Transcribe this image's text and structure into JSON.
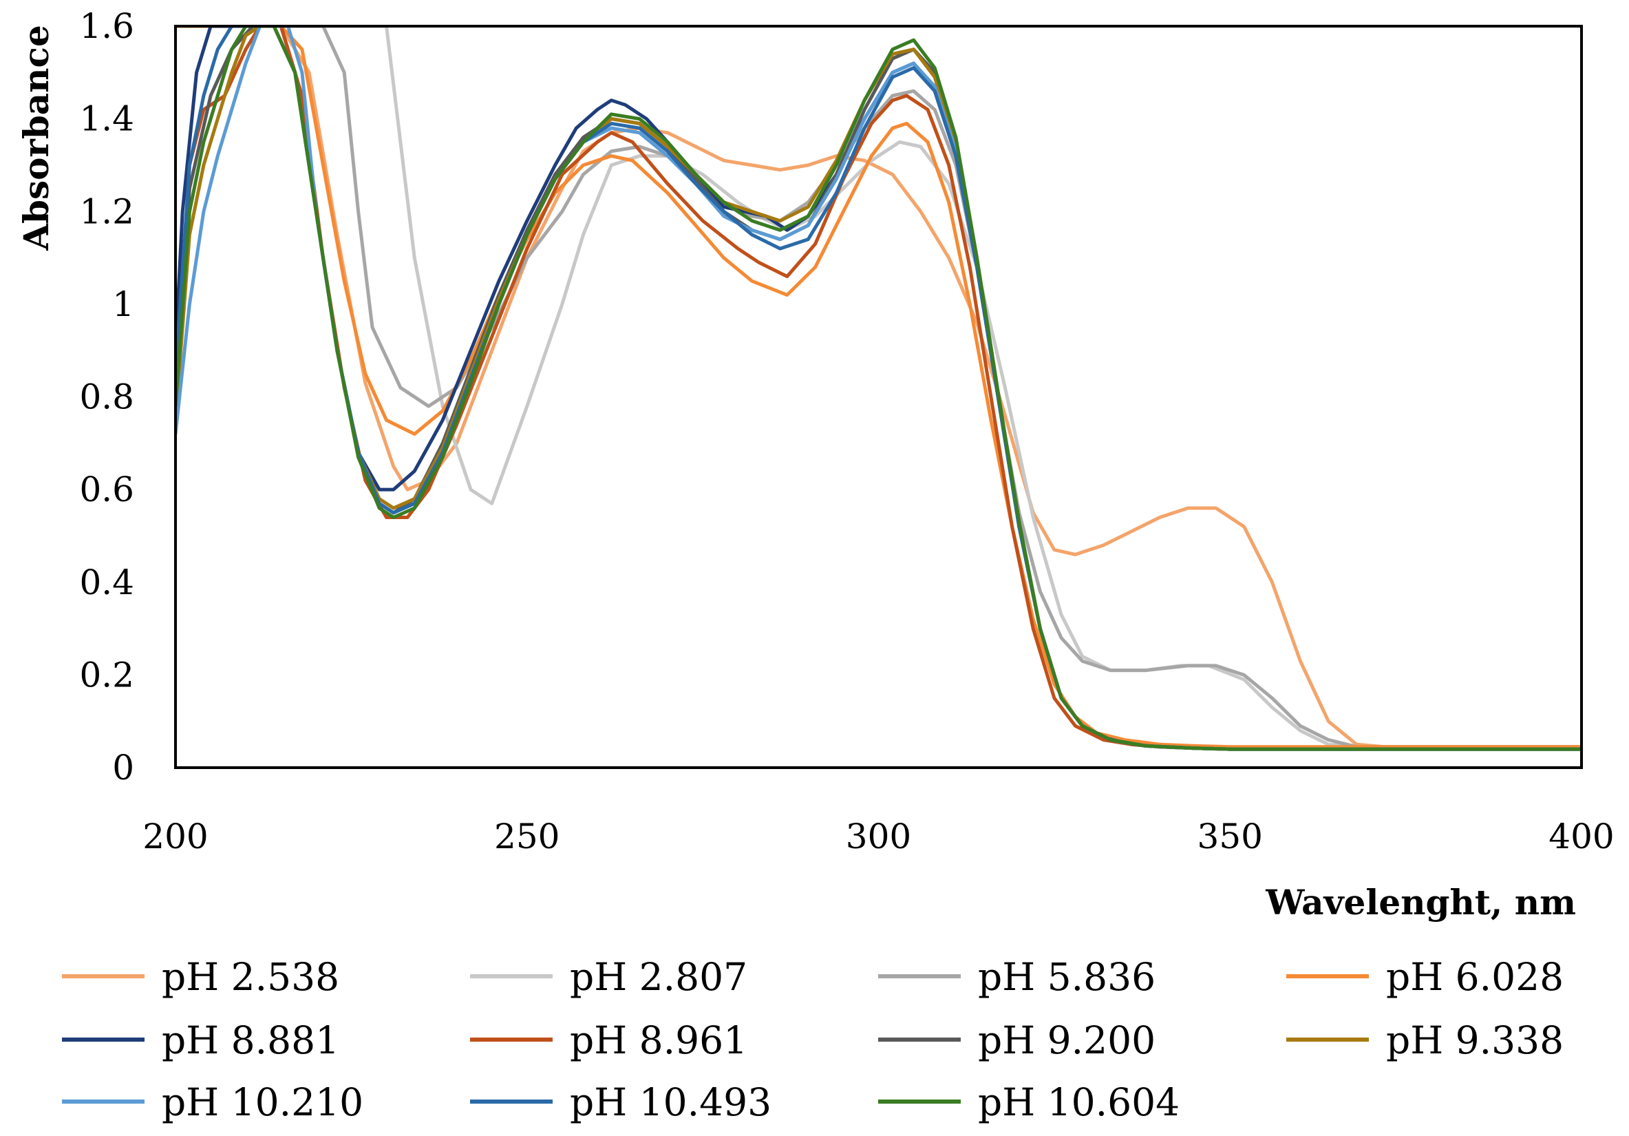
{
  "chart_data": {
    "type": "line",
    "title": "",
    "xlabel": "Wavelenght, nm",
    "ylabel": "Absorbance",
    "xlim": [
      200,
      400
    ],
    "ylim": [
      0,
      1.6
    ],
    "x_ticks": [
      "200",
      "250",
      "300",
      "350",
      "400"
    ],
    "y_ticks": [
      "0",
      "0.2",
      "0.4",
      "0.6",
      "0.8",
      "1",
      "1.2",
      "1.4",
      "1.6"
    ],
    "grid": false,
    "legend_position": "bottom",
    "series": [
      {
        "name": "pH 2.538",
        "color": "#F4A46A",
        "x": [
          200,
          201,
          205,
          210,
          212,
          215,
          219,
          223,
          227,
          231,
          233,
          236,
          240,
          245,
          250,
          255,
          258,
          262,
          266,
          270,
          274,
          278,
          282,
          286,
          290,
          294,
          298,
          302,
          306,
          310,
          314,
          318,
          322,
          325,
          328,
          332,
          336,
          340,
          344,
          348,
          352,
          356,
          360,
          364,
          368,
          372,
          380,
          390,
          400
        ],
        "y": [
          1.6,
          1.6,
          1.6,
          1.6,
          1.6,
          1.6,
          1.5,
          1.15,
          0.83,
          0.65,
          0.6,
          0.62,
          0.7,
          0.9,
          1.1,
          1.25,
          1.33,
          1.37,
          1.38,
          1.37,
          1.34,
          1.31,
          1.3,
          1.29,
          1.3,
          1.32,
          1.31,
          1.28,
          1.2,
          1.1,
          0.96,
          0.76,
          0.55,
          0.47,
          0.46,
          0.48,
          0.51,
          0.54,
          0.56,
          0.56,
          0.52,
          0.4,
          0.23,
          0.1,
          0.05,
          0.045,
          0.045,
          0.045,
          0.045
        ]
      },
      {
        "name": "pH 2.807",
        "color": "#C8C8C8",
        "x": [
          200,
          201,
          205,
          210,
          215,
          220,
          225,
          230,
          234,
          238,
          242,
          245,
          250,
          255,
          258,
          262,
          266,
          270,
          275,
          280,
          283,
          287,
          291,
          295,
          299,
          303,
          306,
          310,
          314,
          318,
          322,
          326,
          329,
          333,
          338,
          343,
          347,
          352,
          356,
          360,
          364,
          368,
          372,
          380,
          390,
          400
        ],
        "y": [
          1.6,
          1.6,
          1.6,
          1.6,
          1.6,
          1.6,
          1.6,
          1.6,
          1.1,
          0.78,
          0.6,
          0.57,
          0.78,
          1.0,
          1.15,
          1.3,
          1.32,
          1.32,
          1.28,
          1.22,
          1.19,
          1.16,
          1.19,
          1.25,
          1.31,
          1.35,
          1.34,
          1.26,
          1.08,
          0.82,
          0.54,
          0.33,
          0.24,
          0.21,
          0.21,
          0.22,
          0.22,
          0.19,
          0.13,
          0.08,
          0.05,
          0.045,
          0.045,
          0.045,
          0.045,
          0.045
        ]
      },
      {
        "name": "pH 5.836",
        "color": "#A6A6A6",
        "x": [
          200,
          201,
          204,
          208,
          212,
          215,
          218,
          221,
          224,
          226,
          228,
          232,
          236,
          240,
          245,
          250,
          255,
          258,
          262,
          266,
          270,
          274,
          278,
          282,
          286,
          290,
          294,
          298,
          302,
          305,
          308,
          311,
          314,
          317,
          320,
          323,
          326,
          329,
          333,
          338,
          344,
          348,
          352,
          356,
          360,
          364,
          368,
          372,
          380,
          390,
          400
        ],
        "y": [
          1.6,
          1.6,
          1.6,
          1.6,
          1.6,
          1.6,
          1.6,
          1.6,
          1.5,
          1.2,
          0.95,
          0.82,
          0.78,
          0.82,
          0.95,
          1.1,
          1.2,
          1.28,
          1.33,
          1.34,
          1.32,
          1.28,
          1.22,
          1.19,
          1.18,
          1.22,
          1.3,
          1.38,
          1.45,
          1.46,
          1.42,
          1.3,
          1.08,
          0.8,
          0.55,
          0.38,
          0.28,
          0.23,
          0.21,
          0.21,
          0.22,
          0.22,
          0.2,
          0.15,
          0.09,
          0.06,
          0.045,
          0.045,
          0.045,
          0.045,
          0.045
        ]
      },
      {
        "name": "pH 6.028",
        "color": "#F58A35",
        "x": [
          200,
          201,
          205,
          209,
          212,
          215,
          218,
          221,
          224,
          227,
          230,
          234,
          238,
          242,
          246,
          250,
          254,
          258,
          262,
          265,
          270,
          274,
          278,
          282,
          287,
          291,
          295,
          299,
          302,
          304,
          307,
          310,
          313,
          316,
          319,
          322,
          325,
          328,
          331,
          335,
          340,
          345,
          350,
          360,
          370,
          380,
          390,
          400
        ],
        "y": [
          1.6,
          1.6,
          1.6,
          1.6,
          1.6,
          1.6,
          1.55,
          1.3,
          1.05,
          0.85,
          0.75,
          0.72,
          0.77,
          0.88,
          1.02,
          1.14,
          1.24,
          1.3,
          1.32,
          1.31,
          1.24,
          1.17,
          1.1,
          1.05,
          1.02,
          1.08,
          1.2,
          1.32,
          1.38,
          1.39,
          1.35,
          1.22,
          1.0,
          0.75,
          0.52,
          0.32,
          0.18,
          0.11,
          0.075,
          0.06,
          0.05,
          0.047,
          0.045,
          0.045,
          0.045,
          0.045,
          0.045,
          0.045
        ]
      },
      {
        "name": "pH 8.881",
        "color": "#1F3D7A",
        "x": [
          200,
          201,
          203,
          205,
          207,
          209,
          211,
          213,
          215,
          217,
          220,
          223,
          226,
          229,
          231,
          234,
          238,
          242,
          246,
          250,
          254,
          257,
          260,
          262,
          264,
          267,
          270,
          274,
          278,
          281,
          284,
          287,
          290,
          294,
          298,
          302,
          305,
          308,
          311,
          314,
          317,
          320,
          323,
          326,
          329,
          332,
          336,
          340,
          345,
          350,
          360,
          370,
          380,
          390,
          400
        ],
        "y": [
          0.9,
          1.2,
          1.5,
          1.6,
          1.6,
          1.6,
          1.6,
          1.6,
          1.6,
          1.5,
          1.2,
          0.9,
          0.68,
          0.6,
          0.6,
          0.64,
          0.75,
          0.9,
          1.05,
          1.18,
          1.3,
          1.38,
          1.42,
          1.44,
          1.43,
          1.4,
          1.35,
          1.28,
          1.21,
          1.2,
          1.19,
          1.16,
          1.19,
          1.28,
          1.4,
          1.5,
          1.52,
          1.46,
          1.32,
          1.08,
          0.8,
          0.52,
          0.3,
          0.15,
          0.09,
          0.065,
          0.05,
          0.045,
          0.042,
          0.04,
          0.04,
          0.04,
          0.04,
          0.04,
          0.04
        ]
      },
      {
        "name": "pH 8.961",
        "color": "#C0501A",
        "x": [
          200,
          202,
          204,
          207,
          210,
          212,
          215,
          218,
          221,
          224,
          227,
          230,
          233,
          236,
          240,
          245,
          250,
          255,
          260,
          262,
          265,
          270,
          275,
          280,
          283,
          287,
          291,
          295,
          299,
          302,
          304,
          307,
          310,
          313,
          316,
          319,
          322,
          325,
          328,
          332,
          336,
          340,
          345,
          350,
          360,
          370,
          380,
          390,
          400
        ],
        "y": [
          0.8,
          1.3,
          1.42,
          1.45,
          1.55,
          1.6,
          1.6,
          1.45,
          1.1,
          0.82,
          0.62,
          0.54,
          0.54,
          0.6,
          0.74,
          0.93,
          1.12,
          1.28,
          1.35,
          1.37,
          1.35,
          1.26,
          1.18,
          1.12,
          1.09,
          1.06,
          1.13,
          1.27,
          1.39,
          1.44,
          1.45,
          1.42,
          1.3,
          1.08,
          0.8,
          0.52,
          0.3,
          0.15,
          0.09,
          0.06,
          0.05,
          0.045,
          0.042,
          0.04,
          0.04,
          0.04,
          0.04,
          0.04,
          0.04
        ]
      },
      {
        "name": "pH 9.200",
        "color": "#595959",
        "x": [
          200,
          202,
          205,
          208,
          211,
          214,
          217,
          220,
          223,
          226,
          229,
          231,
          234,
          238,
          242,
          246,
          250,
          254,
          258,
          262,
          266,
          270,
          274,
          278,
          282,
          286,
          290,
          294,
          298,
          302,
          305,
          308,
          311,
          314,
          317,
          320,
          323,
          326,
          329,
          333,
          338,
          345,
          350,
          360,
          370,
          380,
          390,
          400
        ],
        "y": [
          0.8,
          1.25,
          1.45,
          1.55,
          1.6,
          1.6,
          1.5,
          1.2,
          0.9,
          0.68,
          0.57,
          0.55,
          0.58,
          0.7,
          0.86,
          1.02,
          1.16,
          1.28,
          1.36,
          1.4,
          1.39,
          1.34,
          1.27,
          1.2,
          1.16,
          1.14,
          1.17,
          1.28,
          1.42,
          1.53,
          1.55,
          1.5,
          1.35,
          1.1,
          0.81,
          0.53,
          0.3,
          0.15,
          0.09,
          0.06,
          0.047,
          0.042,
          0.04,
          0.04,
          0.04,
          0.04,
          0.04,
          0.04
        ]
      },
      {
        "name": "pH 9.338",
        "color": "#A67A10",
        "x": [
          200,
          202,
          204,
          206,
          208,
          210,
          212,
          214,
          217,
          220,
          223,
          226,
          229,
          231,
          234,
          238,
          242,
          246,
          250,
          254,
          258,
          262,
          266,
          270,
          274,
          278,
          282,
          286,
          290,
          294,
          298,
          302,
          305,
          308,
          311,
          314,
          317,
          320,
          323,
          326,
          329,
          333,
          338,
          345,
          350,
          360,
          370,
          380,
          390,
          400
        ],
        "y": [
          0.75,
          1.15,
          1.3,
          1.4,
          1.5,
          1.58,
          1.6,
          1.6,
          1.5,
          1.2,
          0.9,
          0.68,
          0.58,
          0.56,
          0.58,
          0.69,
          0.85,
          1.01,
          1.15,
          1.27,
          1.35,
          1.4,
          1.39,
          1.34,
          1.28,
          1.22,
          1.2,
          1.18,
          1.21,
          1.31,
          1.44,
          1.54,
          1.55,
          1.49,
          1.34,
          1.09,
          0.8,
          0.52,
          0.3,
          0.15,
          0.09,
          0.06,
          0.047,
          0.042,
          0.04,
          0.04,
          0.04,
          0.04,
          0.04,
          0.04
        ]
      },
      {
        "name": "pH 10.210",
        "color": "#5B9BD5",
        "x": [
          200,
          202,
          204,
          206,
          208,
          210,
          212,
          214,
          216,
          218,
          220,
          223,
          226,
          229,
          231,
          234,
          238,
          242,
          246,
          250,
          254,
          258,
          262,
          266,
          270,
          274,
          278,
          282,
          286,
          290,
          294,
          298,
          302,
          305,
          308,
          311,
          314,
          317,
          320,
          323,
          326,
          329,
          333,
          338,
          345,
          350,
          360,
          370,
          380,
          390,
          400
        ],
        "y": [
          0.72,
          1.0,
          1.2,
          1.32,
          1.42,
          1.52,
          1.6,
          1.6,
          1.6,
          1.5,
          1.2,
          0.9,
          0.68,
          0.57,
          0.55,
          0.57,
          0.68,
          0.84,
          1.0,
          1.15,
          1.27,
          1.35,
          1.38,
          1.37,
          1.32,
          1.26,
          1.19,
          1.16,
          1.14,
          1.17,
          1.27,
          1.4,
          1.5,
          1.52,
          1.47,
          1.33,
          1.08,
          0.8,
          0.52,
          0.3,
          0.15,
          0.09,
          0.06,
          0.047,
          0.042,
          0.04,
          0.04,
          0.04,
          0.04,
          0.04,
          0.04
        ]
      },
      {
        "name": "pH 10.493",
        "color": "#2A6AA8",
        "x": [
          200,
          202,
          204,
          206,
          208,
          210,
          212,
          214,
          217,
          220,
          223,
          226,
          229,
          231,
          234,
          238,
          242,
          246,
          250,
          254,
          258,
          262,
          266,
          270,
          274,
          278,
          282,
          286,
          290,
          294,
          298,
          302,
          305,
          308,
          311,
          314,
          317,
          320,
          323,
          326,
          329,
          333,
          338,
          345,
          350,
          360,
          370,
          380,
          390,
          400
        ],
        "y": [
          0.85,
          1.3,
          1.45,
          1.55,
          1.6,
          1.6,
          1.6,
          1.6,
          1.5,
          1.2,
          0.9,
          0.68,
          0.57,
          0.55,
          0.57,
          0.68,
          0.84,
          1.0,
          1.15,
          1.27,
          1.35,
          1.39,
          1.38,
          1.33,
          1.26,
          1.2,
          1.15,
          1.12,
          1.14,
          1.24,
          1.38,
          1.49,
          1.51,
          1.46,
          1.32,
          1.08,
          0.8,
          0.52,
          0.3,
          0.15,
          0.09,
          0.06,
          0.047,
          0.042,
          0.04,
          0.04,
          0.04,
          0.04,
          0.04,
          0.04
        ]
      },
      {
        "name": "pH 10.604",
        "color": "#3A7D22",
        "x": [
          200,
          202,
          204,
          206,
          208,
          210,
          212,
          214,
          217,
          220,
          223,
          226,
          229,
          231,
          234,
          238,
          242,
          246,
          250,
          254,
          258,
          262,
          266,
          270,
          274,
          278,
          282,
          286,
          290,
          294,
          298,
          302,
          305,
          308,
          311,
          314,
          317,
          320,
          323,
          326,
          329,
          333,
          338,
          345,
          350,
          360,
          370,
          380,
          390,
          400
        ],
        "y": [
          0.78,
          1.2,
          1.35,
          1.45,
          1.55,
          1.6,
          1.6,
          1.6,
          1.5,
          1.2,
          0.9,
          0.67,
          0.56,
          0.54,
          0.56,
          0.67,
          0.83,
          1.0,
          1.15,
          1.27,
          1.35,
          1.41,
          1.4,
          1.35,
          1.28,
          1.22,
          1.18,
          1.16,
          1.19,
          1.3,
          1.44,
          1.55,
          1.57,
          1.51,
          1.36,
          1.1,
          0.81,
          0.53,
          0.3,
          0.15,
          0.09,
          0.06,
          0.047,
          0.042,
          0.04,
          0.04,
          0.04,
          0.04,
          0.04,
          0.04
        ]
      }
    ]
  }
}
